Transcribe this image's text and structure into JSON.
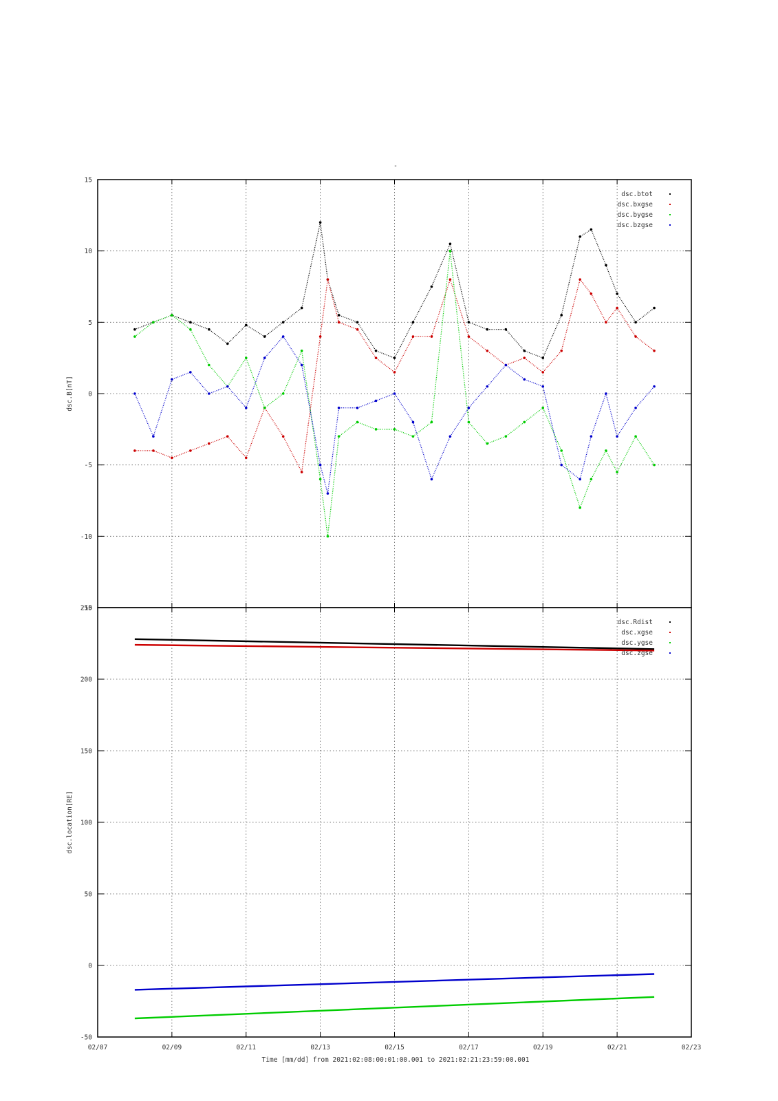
{
  "figure": {
    "title_mark": "-",
    "xlabel": "Time [mm/dd]  from 2021:02:08:00:01:00.001  to  2021:02:21:23:59:00.001",
    "x_tick_labels": [
      "02/07",
      "02/09",
      "02/11",
      "02/13",
      "02/15",
      "02/17",
      "02/19",
      "02/21",
      "02/23"
    ],
    "colors": {
      "black": "#000000",
      "red": "#cc0000",
      "green": "#00cc00",
      "blue": "#0000cc"
    }
  },
  "chart_data": [
    {
      "type": "scatter",
      "ylabel": "dsc.B[nT]",
      "xlim": [
        7,
        23
      ],
      "ylim": [
        -15,
        15
      ],
      "yticks": [
        15,
        10,
        5,
        0,
        -5,
        -10,
        -15
      ],
      "grid": true,
      "legend_position": "top-right",
      "series": [
        {
          "name": "dsc.btot",
          "color": "#000000",
          "x": [
            8.0,
            8.5,
            9.0,
            9.5,
            10.0,
            10.5,
            11.0,
            11.5,
            12.0,
            12.5,
            13.0,
            13.2,
            13.5,
            14.0,
            14.5,
            15.0,
            15.5,
            16.0,
            16.5,
            17.0,
            17.5,
            18.0,
            18.5,
            19.0,
            19.5,
            20.0,
            20.3,
            20.7,
            21.0,
            21.5,
            22.0
          ],
          "y": [
            4.5,
            5.0,
            5.5,
            5.0,
            4.5,
            3.5,
            4.8,
            4.0,
            5.0,
            6.0,
            12.0,
            8.0,
            5.5,
            5.0,
            3.0,
            2.5,
            5.0,
            7.5,
            10.5,
            5.0,
            4.5,
            4.5,
            3.0,
            2.5,
            5.5,
            11.0,
            11.5,
            9.0,
            7.0,
            5.0,
            6.0
          ]
        },
        {
          "name": "dsc.bxgse",
          "color": "#cc0000",
          "x": [
            8.0,
            8.5,
            9.0,
            9.5,
            10.0,
            10.5,
            11.0,
            11.5,
            12.0,
            12.5,
            13.0,
            13.2,
            13.5,
            14.0,
            14.5,
            15.0,
            15.5,
            16.0,
            16.5,
            17.0,
            17.5,
            18.0,
            18.5,
            19.0,
            19.5,
            20.0,
            20.3,
            20.7,
            21.0,
            21.5,
            22.0
          ],
          "y": [
            -4.0,
            -4.0,
            -4.5,
            -4.0,
            -3.5,
            -3.0,
            -4.5,
            -1.0,
            -3.0,
            -5.5,
            4.0,
            8.0,
            5.0,
            4.5,
            2.5,
            1.5,
            4.0,
            4.0,
            8.0,
            4.0,
            3.0,
            2.0,
            2.5,
            1.5,
            3.0,
            8.0,
            7.0,
            5.0,
            6.0,
            4.0,
            3.0
          ]
        },
        {
          "name": "dsc.bygse",
          "color": "#00cc00",
          "x": [
            8.0,
            8.5,
            9.0,
            9.5,
            10.0,
            10.5,
            11.0,
            11.5,
            12.0,
            12.5,
            13.0,
            13.2,
            13.5,
            14.0,
            14.5,
            15.0,
            15.5,
            16.0,
            16.5,
            17.0,
            17.5,
            18.0,
            18.5,
            19.0,
            19.5,
            20.0,
            20.3,
            20.7,
            21.0,
            21.5,
            22.0
          ],
          "y": [
            4.0,
            5.0,
            5.5,
            4.5,
            2.0,
            0.5,
            2.5,
            -1.0,
            0.0,
            3.0,
            -6.0,
            -10.0,
            -3.0,
            -2.0,
            -2.5,
            -2.5,
            -3.0,
            -2.0,
            10.0,
            -2.0,
            -3.5,
            -3.0,
            -2.0,
            -1.0,
            -4.0,
            -8.0,
            -6.0,
            -4.0,
            -5.5,
            -3.0,
            -5.0
          ]
        },
        {
          "name": "dsc.bzgse",
          "color": "#0000cc",
          "x": [
            8.0,
            8.5,
            9.0,
            9.5,
            10.0,
            10.5,
            11.0,
            11.5,
            12.0,
            12.5,
            13.0,
            13.2,
            13.5,
            14.0,
            14.5,
            15.0,
            15.5,
            16.0,
            16.5,
            17.0,
            17.5,
            18.0,
            18.5,
            19.0,
            19.5,
            20.0,
            20.3,
            20.7,
            21.0,
            21.5,
            22.0
          ],
          "y": [
            0.0,
            -3.0,
            1.0,
            1.5,
            0.0,
            0.5,
            -1.0,
            2.5,
            4.0,
            2.0,
            -5.0,
            -7.0,
            -1.0,
            -1.0,
            -0.5,
            0.0,
            -2.0,
            -6.0,
            -3.0,
            -1.0,
            0.5,
            2.0,
            1.0,
            0.5,
            -5.0,
            -6.0,
            -3.0,
            0.0,
            -3.0,
            -1.0,
            0.5
          ]
        }
      ]
    },
    {
      "type": "line",
      "ylabel": "dsc.location[RE]",
      "xlim": [
        7,
        23
      ],
      "ylim": [
        -50,
        250
      ],
      "yticks": [
        250,
        200,
        150,
        100,
        50,
        0,
        -50
      ],
      "grid": true,
      "legend_position": "top-right",
      "series": [
        {
          "name": "dsc.Rdist",
          "color": "#000000",
          "x": [
            8.0,
            22.0
          ],
          "y": [
            228,
            221
          ]
        },
        {
          "name": "dsc.xgse",
          "color": "#cc0000",
          "x": [
            8.0,
            22.0
          ],
          "y": [
            224,
            220
          ]
        },
        {
          "name": "dsc.ygse",
          "color": "#00cc00",
          "x": [
            8.0,
            22.0
          ],
          "y": [
            -37,
            -22
          ]
        },
        {
          "name": "dsc.zgse",
          "color": "#0000cc",
          "x": [
            8.0,
            22.0
          ],
          "y": [
            -17,
            -6
          ]
        }
      ]
    }
  ]
}
